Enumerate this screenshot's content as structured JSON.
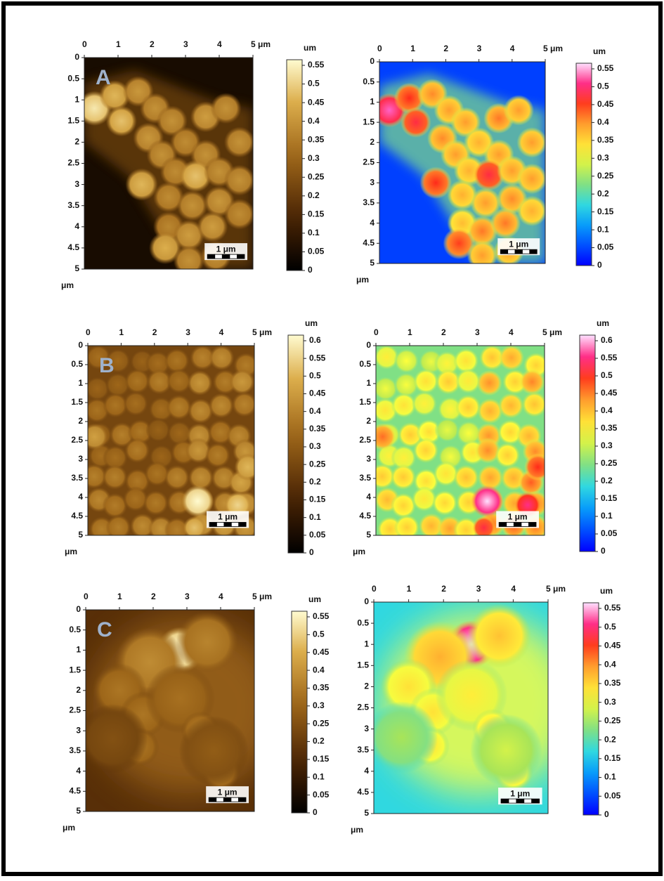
{
  "panels": [
    {
      "label": "A",
      "images": [
        {
          "x_ticks": [
            "0",
            "1",
            "2",
            "3",
            "4",
            "5 μm"
          ],
          "y_ticks": [
            "0",
            "0.5",
            "1",
            "1.5",
            "2",
            "2.5",
            "3",
            "3.5",
            "4",
            "4.5",
            "5"
          ],
          "y_unit": "μm",
          "scale_bar": "1 μm",
          "colorbar_unit": "um",
          "colorbar_ticks": [
            "0",
            "0.05",
            "0.1",
            "0.15",
            "0.2",
            "0.25",
            "0.3",
            "0.35",
            "0.4",
            "0.45",
            "0.5",
            "0.55"
          ]
        },
        {
          "x_ticks": [
            "0",
            "1",
            "2",
            "3",
            "4",
            "5 μm"
          ],
          "y_ticks": [
            "0",
            "0.5",
            "1",
            "1.5",
            "2",
            "2.5",
            "3",
            "3.5",
            "4",
            "4.5",
            "5"
          ],
          "y_unit": "μm",
          "scale_bar": "1 μm",
          "colorbar_unit": "um",
          "colorbar_ticks": [
            "0",
            "0.05",
            "0.1",
            "0.15",
            "0.2",
            "0.25",
            "0.3",
            "0.35",
            "0.4",
            "0.45",
            "0.5",
            "0.55"
          ]
        }
      ]
    },
    {
      "label": "B",
      "images": [
        {
          "x_ticks": [
            "0",
            "1",
            "2",
            "3",
            "4",
            "5 μm"
          ],
          "y_ticks": [
            "0",
            "0.5",
            "1",
            "1.5",
            "2",
            "2.5",
            "3",
            "3.5",
            "4",
            "4.5",
            "5"
          ],
          "y_unit": "μm",
          "scale_bar": "1 μm",
          "colorbar_unit": "um",
          "colorbar_ticks": [
            "0",
            "0.05",
            "0.1",
            "0.15",
            "0.2",
            "0.25",
            "0.3",
            "0.35",
            "0.4",
            "0.45",
            "0.5",
            "0.55",
            "0.6"
          ]
        },
        {
          "x_ticks": [
            "0",
            "1",
            "2",
            "3",
            "4",
            "5 μm"
          ],
          "y_ticks": [
            "0",
            "0.5",
            "1",
            "1.5",
            "2",
            "2.5",
            "3",
            "3.5",
            "4",
            "4.5",
            "5"
          ],
          "y_unit": "μm",
          "scale_bar": "1 μm",
          "colorbar_unit": "um",
          "colorbar_ticks": [
            "0",
            "0.05",
            "0.1",
            "0.15",
            "0.2",
            "0.25",
            "0.3",
            "0.35",
            "0.4",
            "0.45",
            "0.5",
            "0.55",
            "0.6"
          ]
        }
      ]
    },
    {
      "label": "C",
      "images": [
        {
          "x_ticks": [
            "0",
            "1",
            "2",
            "3",
            "4",
            "5 μm"
          ],
          "y_ticks": [
            "0",
            "0.5",
            "1",
            "1.5",
            "2",
            "2.5",
            "3",
            "3.5",
            "4",
            "4.5",
            "5"
          ],
          "y_unit": "μm",
          "scale_bar": "1 μm",
          "colorbar_unit": "um",
          "colorbar_ticks": [
            "0",
            "0.05",
            "0.1",
            "0.15",
            "0.2",
            "0.25",
            "0.3",
            "0.35",
            "0.4",
            "0.45",
            "0.5",
            "0.55"
          ]
        },
        {
          "x_ticks": [
            "0",
            "1",
            "2",
            "3",
            "4",
            "5 μm"
          ],
          "y_ticks": [
            "0",
            "0.5",
            "1",
            "1.5",
            "2",
            "2.5",
            "3",
            "3.5",
            "4",
            "4.5",
            "5"
          ],
          "y_unit": "μm",
          "scale_bar": "1 μm",
          "colorbar_unit": "um",
          "colorbar_ticks": [
            "0",
            "0.05",
            "0.1",
            "0.15",
            "0.2",
            "0.25",
            "0.3",
            "0.35",
            "0.4",
            "0.45",
            "0.5",
            "0.55"
          ]
        }
      ]
    }
  ]
}
